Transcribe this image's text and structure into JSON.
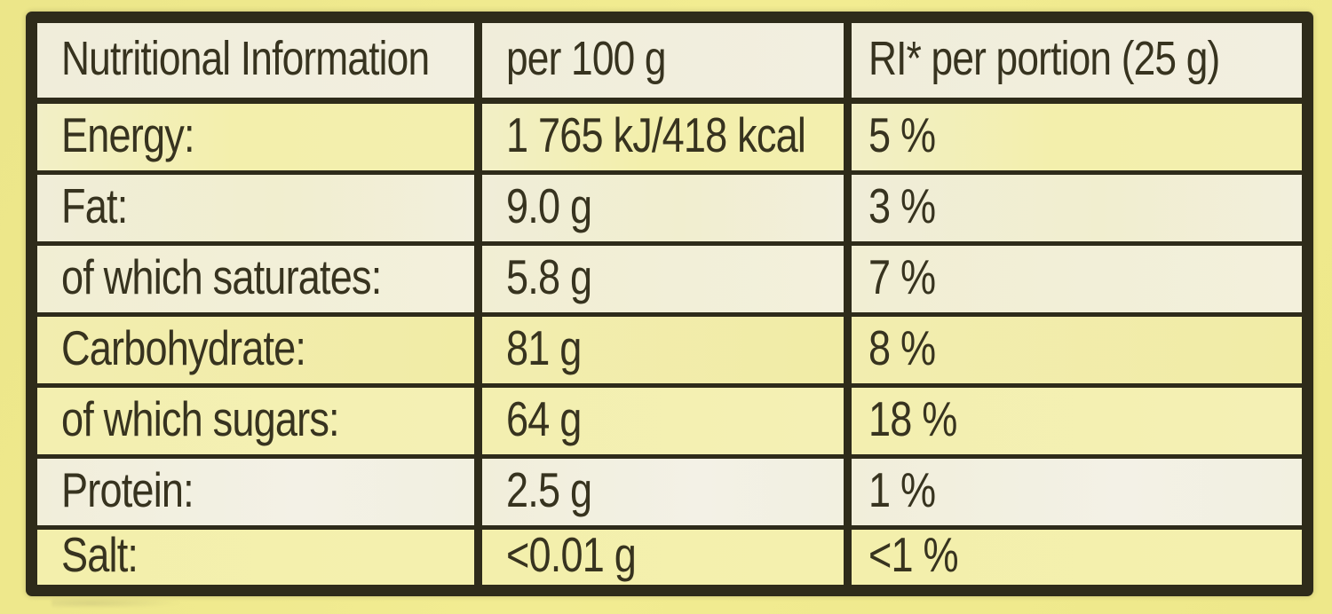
{
  "label": {
    "type": "nutrition-facts-table",
    "columns": [
      "Nutritional Information",
      "per 100 g",
      "RI* per portion (25 g)"
    ],
    "rows": [
      {
        "label": "Energy:",
        "per_100g": "1 765 kJ/418 kcal",
        "ri_per_portion": "5 %"
      },
      {
        "label": "Fat:",
        "per_100g": "9.0 g",
        "ri_per_portion": "3 %"
      },
      {
        "label": "of which saturates:",
        "per_100g": "5.8 g",
        "ri_per_portion": "7 %"
      },
      {
        "label": "Carbohydrate:",
        "per_100g": "81 g",
        "ri_per_portion": "8 %"
      },
      {
        "label": "of which sugars:",
        "per_100g": "64 g",
        "ri_per_portion": "18 %"
      },
      {
        "label": "Protein:",
        "per_100g": "2.5 g",
        "ri_per_portion": "1 %"
      },
      {
        "label": "Salt:",
        "per_100g": "<0.01 g",
        "ri_per_portion": "<1 %"
      }
    ]
  },
  "colors": {
    "outside_bg": "#efe98d",
    "ink": "#37331f",
    "line": "#2e2b1a",
    "header_bg": "#f1eedc"
  }
}
